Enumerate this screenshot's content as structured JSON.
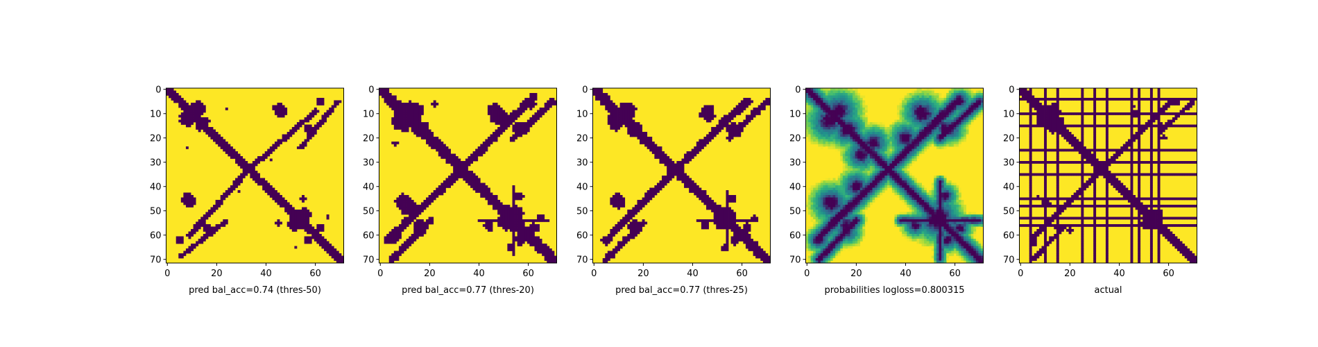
{
  "colors": {
    "background": "#ffffff",
    "low": "#440154",
    "high": "#fde725",
    "viridis_mid_1": "#31688e",
    "viridis_mid_2": "#21918c",
    "viridis_mid_3": "#35b779",
    "viridis_mid_4": "#90d743"
  },
  "chart_data": [
    {
      "type": "heatmap",
      "title": "",
      "xlabel": "pred bal_acc=0.74 (thres-50)",
      "ylabel": "",
      "matrix_size": 72,
      "xlim": [
        0,
        71
      ],
      "ylim": [
        71,
        0
      ],
      "xticks": [
        "0",
        "20",
        "40",
        "60"
      ],
      "yticks": [
        "0",
        "10",
        "20",
        "30",
        "40",
        "50",
        "60",
        "70"
      ],
      "colormap": "viridis",
      "value_kind": "binary",
      "bands": [
        {
          "i1": 0,
          "j1": 0,
          "i2": 71,
          "j2": 71,
          "r": 1.6
        },
        {
          "i1": 33,
          "j1": 33,
          "i2": 60,
          "j2": 9,
          "r": 1.1
        },
        {
          "i1": 5,
          "j1": 69,
          "i2": 24,
          "j2": 54,
          "r": 1.0
        }
      ],
      "blobs": [
        {
          "i": 8,
          "j": 12,
          "r": 3.2
        },
        {
          "i": 13,
          "j": 15,
          "r": 2.0
        },
        {
          "i": 8,
          "j": 45,
          "r": 2.3
        },
        {
          "i": 17,
          "j": 58,
          "r": 1.6
        },
        {
          "i": 46,
          "j": 9,
          "r": 2.8
        },
        {
          "i": 57,
          "j": 16,
          "r": 1.6
        },
        {
          "i": 52,
          "j": 55,
          "r": 3.2
        },
        {
          "i": 57,
          "j": 62,
          "r": 1.5
        },
        {
          "i": 62,
          "j": 5,
          "r": 1.8
        },
        {
          "i": 8,
          "j": 24,
          "r": 0.9
        },
        {
          "i": 29,
          "j": 42,
          "r": 0.8
        },
        {
          "i": 45,
          "j": 55,
          "r": 1.2
        },
        {
          "i": 65,
          "j": 52,
          "r": 0.9
        }
      ]
    },
    {
      "type": "heatmap",
      "title": "",
      "xlabel": "pred bal_acc=0.77 (thres-20)",
      "ylabel": "",
      "matrix_size": 72,
      "xlim": [
        0,
        71
      ],
      "ylim": [
        71,
        0
      ],
      "xticks": [
        "0",
        "20",
        "40",
        "60"
      ],
      "yticks": [
        "0",
        "10",
        "20",
        "30",
        "40",
        "50",
        "60",
        "70"
      ],
      "colormap": "viridis",
      "value_kind": "binary",
      "bands": [
        {
          "i1": 0,
          "j1": 0,
          "i2": 71,
          "j2": 71,
          "r": 2.2
        },
        {
          "i1": 33,
          "j1": 33,
          "i2": 62,
          "j2": 3,
          "r": 1.6
        },
        {
          "i1": 33,
          "j1": 33,
          "i2": 10,
          "j2": 55,
          "r": 1.5
        },
        {
          "i1": 5,
          "j1": 70,
          "i2": 20,
          "j2": 54,
          "r": 1.4
        },
        {
          "i1": 54,
          "j1": 40,
          "i2": 54,
          "j2": 68,
          "r": 0.8
        }
      ],
      "blobs": [
        {
          "i": 9,
          "j": 13,
          "r": 4.2
        },
        {
          "i": 16,
          "j": 17,
          "r": 3.0
        },
        {
          "i": 9,
          "j": 46,
          "r": 3.0
        },
        {
          "i": 16,
          "j": 58,
          "r": 2.5
        },
        {
          "i": 48,
          "j": 11,
          "r": 3.6
        },
        {
          "i": 56,
          "j": 16,
          "r": 2.6
        },
        {
          "i": 52,
          "j": 54,
          "r": 4.2
        },
        {
          "i": 57,
          "j": 62,
          "r": 2.2
        },
        {
          "i": 61,
          "j": 6,
          "r": 2.2
        },
        {
          "i": 44,
          "j": 56,
          "r": 2.0
        },
        {
          "i": 65,
          "j": 53,
          "r": 1.6
        },
        {
          "i": 22,
          "j": 6,
          "r": 1.0
        }
      ]
    },
    {
      "type": "heatmap",
      "title": "",
      "xlabel": "pred bal_acc=0.77 (thres-25)",
      "ylabel": "",
      "matrix_size": 72,
      "xlim": [
        0,
        71
      ],
      "ylim": [
        71,
        0
      ],
      "xticks": [
        "0",
        "20",
        "40",
        "60"
      ],
      "yticks": [
        "0",
        "10",
        "20",
        "30",
        "40",
        "50",
        "60",
        "70"
      ],
      "colormap": "viridis",
      "value_kind": "binary",
      "bands": [
        {
          "i1": 0,
          "j1": 0,
          "i2": 71,
          "j2": 71,
          "r": 2.0
        },
        {
          "i1": 33,
          "j1": 33,
          "i2": 62,
          "j2": 5,
          "r": 1.5
        },
        {
          "i1": 33,
          "j1": 33,
          "i2": 12,
          "j2": 54,
          "r": 1.4
        },
        {
          "i1": 5,
          "j1": 70,
          "i2": 20,
          "j2": 55,
          "r": 1.3
        },
        {
          "i1": 54,
          "j1": 42,
          "i2": 54,
          "j2": 66,
          "r": 0.7
        }
      ],
      "blobs": [
        {
          "i": 9,
          "j": 13,
          "r": 3.8
        },
        {
          "i": 16,
          "j": 17,
          "r": 2.7
        },
        {
          "i": 9,
          "j": 46,
          "r": 2.7
        },
        {
          "i": 17,
          "j": 58,
          "r": 2.2
        },
        {
          "i": 46,
          "j": 10,
          "r": 3.0
        },
        {
          "i": 56,
          "j": 16,
          "r": 2.2
        },
        {
          "i": 52,
          "j": 54,
          "r": 3.8
        },
        {
          "i": 57,
          "j": 62,
          "r": 2.0
        },
        {
          "i": 62,
          "j": 5,
          "r": 2.0
        },
        {
          "i": 45,
          "j": 56,
          "r": 1.6
        },
        {
          "i": 65,
          "j": 53,
          "r": 1.4
        }
      ]
    },
    {
      "type": "heatmap",
      "title": "",
      "xlabel": "probabilities logloss=0.800315",
      "ylabel": "",
      "matrix_size": 72,
      "xlim": [
        0,
        71
      ],
      "ylim": [
        71,
        0
      ],
      "xticks": [
        "0",
        "20",
        "40",
        "60"
      ],
      "yticks": [
        "0",
        "10",
        "20",
        "30",
        "40",
        "50",
        "60",
        "70"
      ],
      "colormap": "viridis",
      "value_kind": "continuous",
      "bands": [
        {
          "i1": 0,
          "j1": 0,
          "i2": 71,
          "j2": 71,
          "r": 2.4
        },
        {
          "i1": 33,
          "j1": 33,
          "i2": 62,
          "j2": 4,
          "r": 2.4
        },
        {
          "i1": 33,
          "j1": 33,
          "i2": 10,
          "j2": 55,
          "r": 2.2
        },
        {
          "i1": 5,
          "j1": 70,
          "i2": 20,
          "j2": 54,
          "r": 2.0
        },
        {
          "i1": 54,
          "j1": 38,
          "i2": 54,
          "j2": 70,
          "r": 1.4
        }
      ],
      "blobs": [
        {
          "i": 9,
          "j": 13,
          "r": 5.2
        },
        {
          "i": 16,
          "j": 17,
          "r": 4.0
        },
        {
          "i": 9,
          "j": 46,
          "r": 4.0
        },
        {
          "i": 16,
          "j": 58,
          "r": 3.6
        },
        {
          "i": 47,
          "j": 10,
          "r": 4.8
        },
        {
          "i": 56,
          "j": 16,
          "r": 3.6
        },
        {
          "i": 52,
          "j": 54,
          "r": 5.2
        },
        {
          "i": 57,
          "j": 62,
          "r": 3.0
        },
        {
          "i": 62,
          "j": 5,
          "r": 3.0
        },
        {
          "i": 22,
          "j": 27,
          "r": 4.0
        },
        {
          "i": 40,
          "j": 20,
          "r": 4.0
        },
        {
          "i": 44,
          "j": 56,
          "r": 3.0
        }
      ]
    },
    {
      "type": "heatmap",
      "title": "",
      "xlabel": "actual",
      "ylabel": "",
      "matrix_size": 72,
      "xlim": [
        0,
        71
      ],
      "ylim": [
        71,
        0
      ],
      "xticks": [
        "0",
        "20",
        "40",
        "60"
      ],
      "yticks": [
        "0",
        "10",
        "20",
        "30",
        "40",
        "50",
        "60",
        "70"
      ],
      "colormap": "viridis",
      "value_kind": "binary",
      "masked_lines": [
        4,
        10,
        15,
        25,
        30,
        35,
        45,
        48,
        53,
        56
      ],
      "bands": [
        {
          "i1": 0,
          "j1": 0,
          "i2": 71,
          "j2": 71,
          "r": 1.7
        },
        {
          "i1": 33,
          "j1": 33,
          "i2": 62,
          "j2": 4,
          "r": 1.0
        },
        {
          "i1": 5,
          "j1": 70,
          "i2": 18,
          "j2": 56,
          "r": 0.9
        }
      ],
      "blobs": [
        {
          "i": 9,
          "j": 13,
          "r": 3.0
        },
        {
          "i": 13,
          "j": 16,
          "r": 2.0
        },
        {
          "i": 52,
          "j": 55,
          "r": 2.8
        },
        {
          "i": 63,
          "j": 5,
          "r": 1.6
        },
        {
          "i": 47,
          "j": 10,
          "r": 1.8
        },
        {
          "i": 57,
          "j": 15,
          "r": 1.2
        },
        {
          "i": 20,
          "j": 58,
          "r": 1.1
        },
        {
          "i": 7,
          "j": 45,
          "r": 1.0
        }
      ]
    }
  ]
}
